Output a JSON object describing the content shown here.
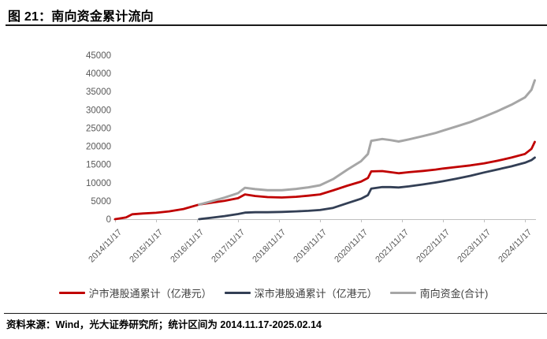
{
  "header": {
    "title": "图 21：南向资金累计流向"
  },
  "footer": {
    "source": "资料来源：Wind，光大证券研究所；统计区间为 2014.11.17-2025.02.14"
  },
  "colors": {
    "sh_line": "#C00000",
    "sz_line": "#333F55",
    "total_line": "#A6A6A6",
    "axis_text": "#595959",
    "axis_line": "#BFBFBF"
  },
  "chart_data": {
    "type": "line",
    "title": "南向资金累计流向",
    "xlabel": "",
    "ylabel": "",
    "ylim": [
      0,
      45000
    ],
    "grid": false,
    "legend_position": "bottom",
    "y_ticks": [
      45000,
      40000,
      35000,
      30000,
      25000,
      20000,
      15000,
      10000,
      5000,
      0
    ],
    "x_tick_labels": [
      "2014/11/17",
      "2015/11/17",
      "2016/11/17",
      "2017/11/17",
      "2018/11/17",
      "2019/11/17",
      "2020/11/17",
      "2021/11/17",
      "2022/11/17",
      "2023/11/17",
      "2024/11/17"
    ],
    "x_tick_positions": [
      2014.88,
      2015.88,
      2016.88,
      2017.88,
      2018.88,
      2019.88,
      2020.88,
      2021.88,
      2022.88,
      2023.88,
      2024.88
    ],
    "x_range": [
      2014.88,
      2025.12
    ],
    "series": [
      {
        "name": "沪市港股通累计（亿港元）",
        "color": "#C00000",
        "x": [
          2014.88,
          2015.05,
          2015.15,
          2015.3,
          2015.55,
          2015.88,
          2016.2,
          2016.55,
          2016.88,
          2016.95,
          2017.2,
          2017.55,
          2017.88,
          2018.05,
          2018.3,
          2018.6,
          2018.95,
          2019.3,
          2019.6,
          2019.88,
          2020.2,
          2020.55,
          2020.88,
          2021.05,
          2021.13,
          2021.4,
          2021.6,
          2021.8,
          2022.05,
          2022.4,
          2022.7,
          2022.88,
          2023.2,
          2023.55,
          2023.88,
          2024.2,
          2024.55,
          2024.88,
          2025.04,
          2025.12
        ],
        "values": [
          0,
          300,
          500,
          1350,
          1550,
          1750,
          2150,
          2800,
          3850,
          4050,
          4450,
          5050,
          5750,
          6800,
          6350,
          6050,
          5950,
          6150,
          6450,
          6800,
          7900,
          9200,
          10300,
          11300,
          13100,
          13200,
          12900,
          12600,
          12900,
          13250,
          13600,
          13900,
          14300,
          14750,
          15300,
          16000,
          16900,
          17900,
          19300,
          21200
        ]
      },
      {
        "name": "深市港股通累计（亿港元）",
        "color": "#333F55",
        "x": [
          2016.93,
          2017.2,
          2017.55,
          2017.88,
          2018.05,
          2018.3,
          2018.6,
          2018.95,
          2019.3,
          2019.6,
          2019.88,
          2020.2,
          2020.55,
          2020.88,
          2021.05,
          2021.13,
          2021.4,
          2021.6,
          2021.8,
          2022.05,
          2022.4,
          2022.7,
          2022.88,
          2023.2,
          2023.55,
          2023.88,
          2024.2,
          2024.55,
          2024.88,
          2025.04,
          2025.12
        ],
        "values": [
          0,
          350,
          850,
          1400,
          1800,
          1900,
          1900,
          2000,
          2150,
          2300,
          2500,
          3100,
          4400,
          5600,
          6600,
          8400,
          8800,
          8800,
          8700,
          9000,
          9550,
          10050,
          10400,
          11100,
          11900,
          12800,
          13600,
          14500,
          15500,
          16200,
          16900
        ]
      },
      {
        "name": "南向资金(合计)",
        "color": "#A6A6A6",
        "x": [
          2016.93,
          2017.2,
          2017.55,
          2017.88,
          2018.05,
          2018.3,
          2018.6,
          2018.95,
          2019.3,
          2019.6,
          2019.88,
          2020.2,
          2020.55,
          2020.88,
          2021.05,
          2021.13,
          2021.4,
          2021.6,
          2021.8,
          2022.05,
          2022.4,
          2022.7,
          2022.88,
          2023.2,
          2023.55,
          2023.88,
          2024.2,
          2024.55,
          2024.88,
          2025.04,
          2025.12
        ],
        "values": [
          4000,
          4800,
          5900,
          7150,
          8600,
          8250,
          7950,
          7950,
          8300,
          8750,
          9300,
          11000,
          13600,
          15900,
          17900,
          21500,
          22000,
          21700,
          21300,
          21900,
          22800,
          23650,
          24300,
          25400,
          26650,
          28100,
          29600,
          31400,
          33400,
          35500,
          38100
        ]
      }
    ]
  }
}
